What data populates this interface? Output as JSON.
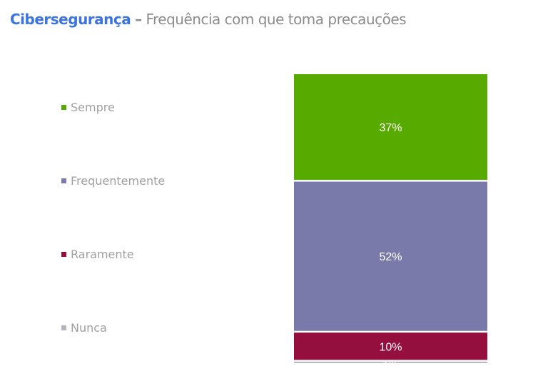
{
  "title": {
    "brand": "Cibersegurança",
    "dash": "–",
    "subtitle": "Frequência com que toma precauções"
  },
  "chart_data": {
    "type": "bar",
    "stacked": true,
    "title": "Cibersegurança – Frequência com que toma precauções",
    "legend_position": "left",
    "series": [
      {
        "name": "Sempre",
        "value": 37,
        "label": "37%",
        "color": "#56aa00"
      },
      {
        "name": "Frequentemente",
        "value": 52,
        "label": "52%",
        "color": "#7a7aaa"
      },
      {
        "name": "Raramente",
        "value": 10,
        "label": "10%",
        "color": "#940e3e"
      },
      {
        "name": "Nunca",
        "value": 1,
        "label": "1%",
        "color": "#b4b4bc"
      }
    ]
  }
}
